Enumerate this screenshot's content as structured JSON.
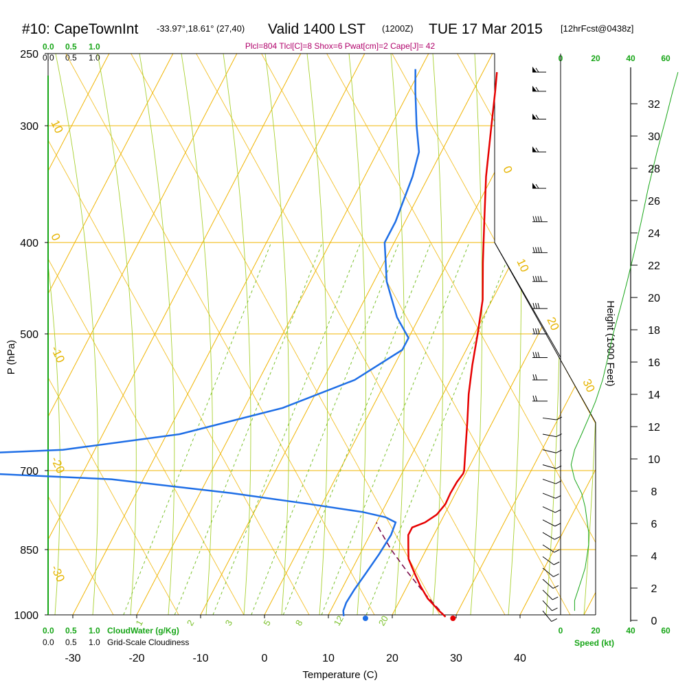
{
  "header": {
    "station": "#10: CapeTownInt",
    "coords": "-33.97°,18.61° (27,40)",
    "valid": "Valid 1400 LST",
    "utc": "(1200Z)",
    "date": "TUE 17 Mar 2015",
    "forecast": "[12hrFcst@0438z]"
  },
  "indices": "Plcl=804 Tlcl[C]=8 Shox=6 Pwat[cm]=2 Cape[J]= 42",
  "cloud_scales": {
    "top_green": [
      "0.0",
      "0.5",
      "1.0"
    ],
    "top_black": [
      "0.0",
      "0.5",
      "1.0"
    ],
    "bottom_green": [
      "0.0",
      "0.5",
      "1.0"
    ],
    "bottom_green_label": "CloudWater (g/Kg)",
    "bottom_black": [
      "0.0",
      "0.5",
      "1.0"
    ],
    "bottom_black_label": "Grid-Scale Cloudiness"
  },
  "speed_scale": {
    "ticks": [
      "0",
      "20",
      "40",
      "60"
    ],
    "label": "Speed (kt)"
  },
  "colors": {
    "temperature": "#e60000",
    "dewpoint": "#1e6ee6",
    "parcel": "#7a0a4a",
    "isotherm": "#f0b400",
    "mixing_ratio": "#7ac02a",
    "adiabat": "#a8d030",
    "cloud_green": "#16a516",
    "speed_line": "#16a516"
  },
  "chart_data": {
    "type": "skew-t",
    "title": "#10: CapeTownInt  Valid 1400 LST (1200Z) TUE 17 Mar 2015",
    "xlabel": "Temperature (C)",
    "ylabel": "P (hPa)",
    "y2label": "Height (1000 Feet)",
    "x_ticks": [
      -30,
      -20,
      -10,
      0,
      10,
      20,
      30,
      40
    ],
    "p_ticks": [
      250,
      300,
      400,
      500,
      700,
      850,
      1000
    ],
    "height_ticks": [
      0,
      2,
      4,
      6,
      8,
      10,
      12,
      14,
      16,
      18,
      20,
      22,
      24,
      26,
      28,
      30,
      32
    ],
    "isotherm_labels": [
      "10",
      "0",
      "-10",
      "-20",
      "-30",
      "0",
      "10",
      "20",
      "30"
    ],
    "isotherm_label_values": [
      10,
      0,
      -10,
      -20,
      -30,
      0,
      10,
      20,
      30
    ],
    "mixing_ratio_labels": [
      "1",
      "2",
      "3",
      "5",
      "8",
      "12",
      "20"
    ],
    "temperature_profile": [
      {
        "p": 1005,
        "t": 28.5
      },
      {
        "p": 990,
        "t": 27.0
      },
      {
        "p": 960,
        "t": 24.2
      },
      {
        "p": 930,
        "t": 22.0
      },
      {
        "p": 900,
        "t": 20.0
      },
      {
        "p": 870,
        "t": 18.0
      },
      {
        "p": 850,
        "t": 17.2
      },
      {
        "p": 820,
        "t": 16.0
      },
      {
        "p": 805,
        "t": 16.0
      },
      {
        "p": 795,
        "t": 17.6
      },
      {
        "p": 780,
        "t": 18.8
      },
      {
        "p": 760,
        "t": 19.3
      },
      {
        "p": 740,
        "t": 19.2
      },
      {
        "p": 720,
        "t": 19.3
      },
      {
        "p": 705,
        "t": 19.6
      },
      {
        "p": 700,
        "t": 19.5
      },
      {
        "p": 660,
        "t": 17.8
      },
      {
        "p": 620,
        "t": 16.0
      },
      {
        "p": 580,
        "t": 14.0
      },
      {
        "p": 540,
        "t": 12.2
      },
      {
        "p": 500,
        "t": 10.5
      },
      {
        "p": 460,
        "t": 8.5
      },
      {
        "p": 420,
        "t": 5.5
      },
      {
        "p": 380,
        "t": 2.4
      },
      {
        "p": 340,
        "t": -1.0
      },
      {
        "p": 300,
        "t": -4.3
      },
      {
        "p": 275,
        "t": -6.5
      },
      {
        "p": 262,
        "t": -7.8
      }
    ],
    "dewpoint_profile": [
      {
        "p": 1003,
        "td": 12.5
      },
      {
        "p": 990,
        "td": 12.0
      },
      {
        "p": 970,
        "td": 11.8
      },
      {
        "p": 940,
        "td": 12.0
      },
      {
        "p": 900,
        "td": 12.5
      },
      {
        "p": 860,
        "td": 13.0
      },
      {
        "p": 820,
        "td": 13.3
      },
      {
        "p": 795,
        "td": 13.0
      },
      {
        "p": 785,
        "td": 11.0
      },
      {
        "p": 775,
        "td": 7.0
      },
      {
        "p": 760,
        "td": -2.0
      },
      {
        "p": 740,
        "td": -15.0
      },
      {
        "p": 715,
        "td": -35.0
      },
      {
        "p": 705,
        "td": -55.0
      },
      {
        "p": 672,
        "td": -60.0
      },
      {
        "p": 665,
        "td": -45.0
      },
      {
        "p": 640,
        "td": -28.0
      },
      {
        "p": 600,
        "td": -14.0
      },
      {
        "p": 560,
        "td": -5.0
      },
      {
        "p": 520,
        "td": 0.0
      },
      {
        "p": 505,
        "td": 0.0
      },
      {
        "p": 480,
        "td": -3.5
      },
      {
        "p": 440,
        "td": -8.0
      },
      {
        "p": 400,
        "td": -11.5
      },
      {
        "p": 380,
        "td": -11.5
      },
      {
        "p": 340,
        "td": -12.5
      },
      {
        "p": 320,
        "td": -13.5
      },
      {
        "p": 300,
        "td": -16.0
      },
      {
        "p": 275,
        "td": -19.0
      },
      {
        "p": 260,
        "td": -20.8
      }
    ],
    "parcel_profile": [
      {
        "p": 1005,
        "t": 28.5
      },
      {
        "p": 950,
        "t": 23.5
      },
      {
        "p": 900,
        "t": 19.0
      },
      {
        "p": 850,
        "t": 14.5
      },
      {
        "p": 805,
        "t": 10.7
      },
      {
        "p": 795,
        "t": 10.0
      }
    ],
    "surface_temperature": 29.5,
    "surface_dewpoint": 15.8,
    "wind_profile": [
      {
        "p": 990,
        "speed": 8
      },
      {
        "p": 965,
        "speed": 8
      },
      {
        "p": 940,
        "speed": 10
      },
      {
        "p": 915,
        "speed": 12
      },
      {
        "p": 890,
        "speed": 14
      },
      {
        "p": 865,
        "speed": 15
      },
      {
        "p": 840,
        "speed": 16
      },
      {
        "p": 815,
        "speed": 16
      },
      {
        "p": 790,
        "speed": 15
      },
      {
        "p": 765,
        "speed": 14
      },
      {
        "p": 740,
        "speed": 12
      },
      {
        "p": 715,
        "speed": 8
      },
      {
        "p": 690,
        "speed": 6
      },
      {
        "p": 665,
        "speed": 8
      },
      {
        "p": 640,
        "speed": 12
      },
      {
        "p": 615,
        "speed": 16
      },
      {
        "p": 590,
        "speed": 20
      },
      {
        "p": 560,
        "speed": 24
      },
      {
        "p": 530,
        "speed": 27
      },
      {
        "p": 500,
        "speed": 30
      },
      {
        "p": 470,
        "speed": 34
      },
      {
        "p": 440,
        "speed": 38
      },
      {
        "p": 410,
        "speed": 42
      },
      {
        "p": 380,
        "speed": 46
      },
      {
        "p": 350,
        "speed": 50
      },
      {
        "p": 320,
        "speed": 55
      },
      {
        "p": 295,
        "speed": 60
      },
      {
        "p": 275,
        "speed": 64
      },
      {
        "p": 262,
        "speed": 67
      }
    ],
    "grid": true
  }
}
